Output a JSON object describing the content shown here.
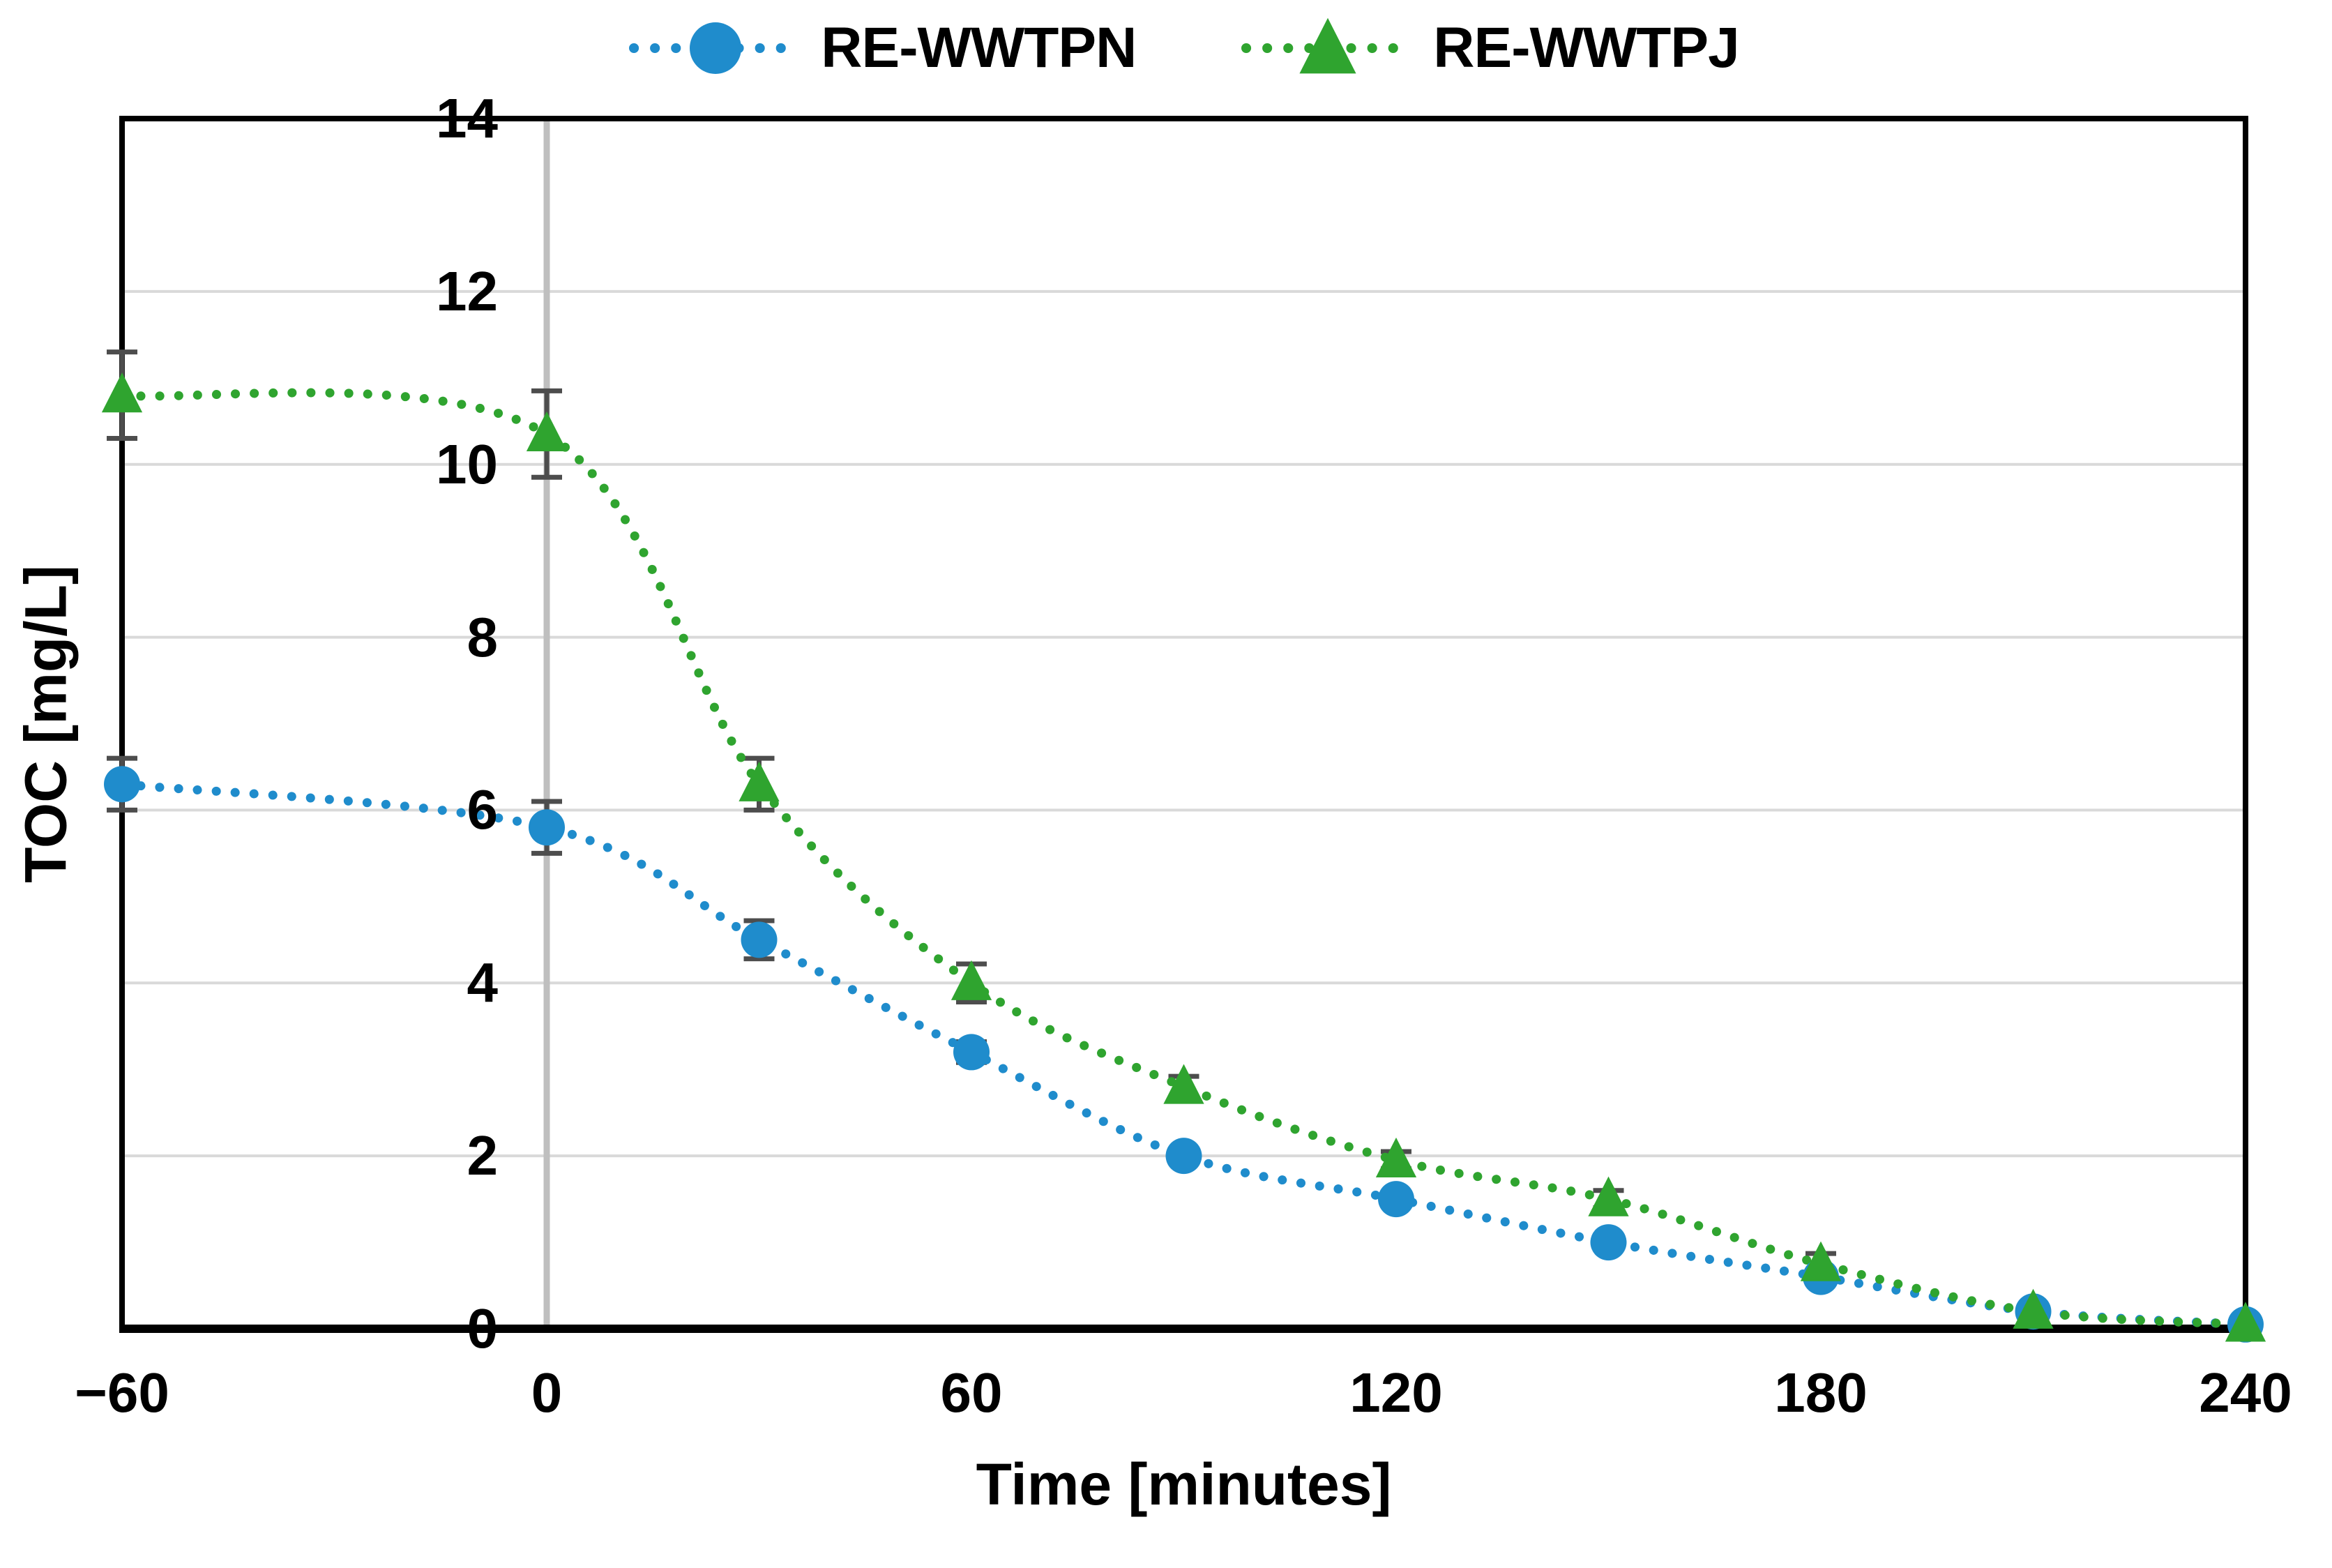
{
  "legend": {
    "entries": [
      {
        "label": "RE-WWTPN",
        "marker": "circle",
        "color": "#1F8CCC"
      },
      {
        "label": "RE-WWTPJ",
        "marker": "triangle",
        "color": "#2FA42F"
      }
    ]
  },
  "axes": {
    "x": {
      "title": "Time [minutes]",
      "min": -60,
      "max": 240,
      "ticks": [
        {
          "value": -60,
          "label": "−60"
        },
        {
          "value": 0,
          "label": "0"
        },
        {
          "value": 60,
          "label": "60"
        },
        {
          "value": 120,
          "label": "120"
        },
        {
          "value": 180,
          "label": "180"
        },
        {
          "value": 240,
          "label": "240"
        }
      ]
    },
    "y": {
      "title": "TOC [mg/L]",
      "min": 0,
      "max": 14,
      "ticks": [
        {
          "value": 0,
          "label": "0"
        },
        {
          "value": 2,
          "label": "2"
        },
        {
          "value": 4,
          "label": "4"
        },
        {
          "value": 6,
          "label": "6"
        },
        {
          "value": 8,
          "label": "8"
        },
        {
          "value": 10,
          "label": "10"
        },
        {
          "value": 12,
          "label": "12"
        },
        {
          "value": 14,
          "label": "14"
        }
      ]
    }
  },
  "chart_data": {
    "type": "line",
    "title": "",
    "xlabel": "Time [minutes]",
    "ylabel": "TOC [mg/L]",
    "xlim": [
      -60,
      240
    ],
    "ylim": [
      0,
      14
    ],
    "grid": "horizontal-major",
    "legend_position": "top-center",
    "line_style": "dotted-smooth",
    "vertical_zero_axis_line": true,
    "x": [
      -60,
      0,
      30,
      60,
      90,
      120,
      150,
      180,
      210,
      240
    ],
    "series": [
      {
        "name": "RE-WWTPN",
        "marker": "circle",
        "color": "#1F8CCC",
        "values": [
          6.3,
          5.8,
          4.5,
          3.2,
          2.0,
          1.5,
          1.0,
          0.6,
          0.2,
          0.05
        ],
        "errors": [
          0.3,
          0.3,
          0.22,
          0.12,
          0.06,
          0.05,
          0.05,
          0.05,
          0.04,
          0.02
        ]
      },
      {
        "name": "RE-WWTPJ",
        "marker": "triangle",
        "color": "#2FA42F",
        "values": [
          10.8,
          10.35,
          6.3,
          4.0,
          2.8,
          1.95,
          1.5,
          0.75,
          0.2,
          0.05
        ],
        "errors": [
          0.5,
          0.5,
          0.3,
          0.22,
          0.12,
          0.1,
          0.1,
          0.12,
          0.05,
          0.02
        ]
      }
    ]
  },
  "colors": {
    "background": "#FFFFFF",
    "text": "#000000",
    "frame": "#000000",
    "gridline": "#D9D9D9",
    "zero_axis_line": "#BFBFBF",
    "error_bar": "#4D4D4D",
    "series_blue": "#1F8CCC",
    "series_green": "#2FA42F"
  }
}
